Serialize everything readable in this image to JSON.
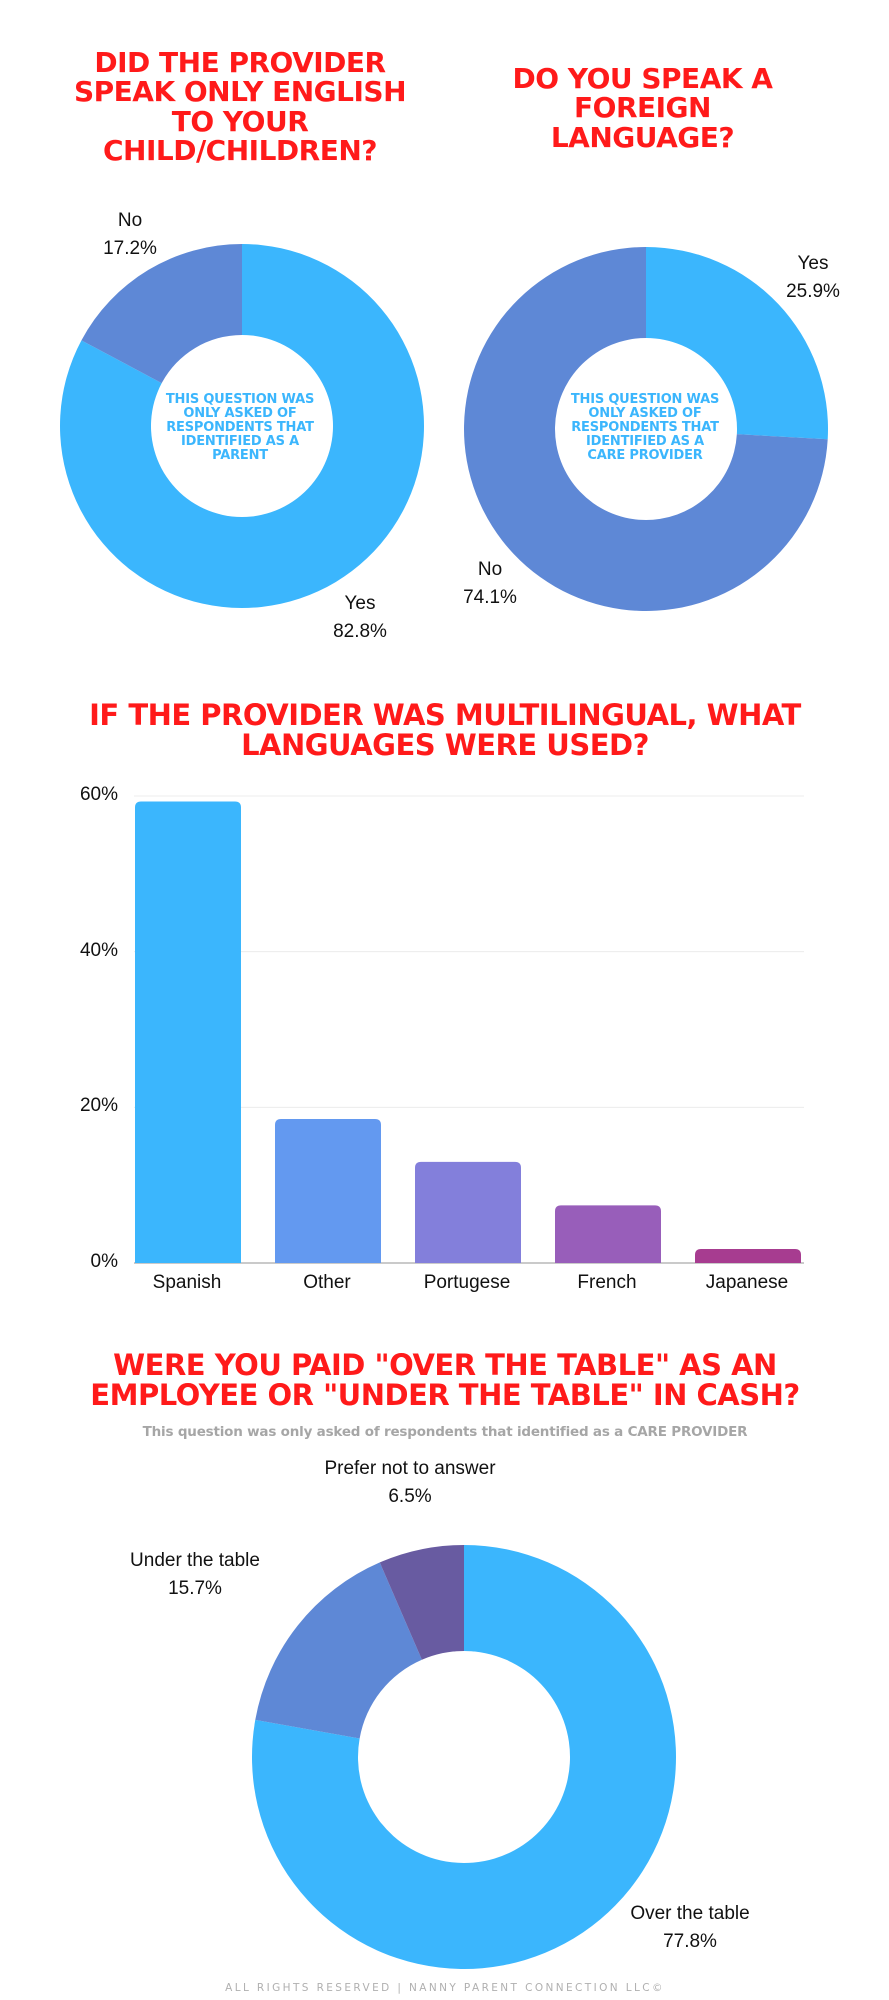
{
  "charts": {
    "q1": {
      "title": "DID THE PROVIDER SPEAK ONLY ENGLISH TO YOUR CHILD/CHILDREN?",
      "center_note": "THIS QUESTION WAS ONLY ASKED OF RESPONDENTS THAT IDENTIFIED AS A PARENT",
      "slices": [
        {
          "label": "Yes",
          "value_text": "82.8%"
        },
        {
          "label": "No",
          "value_text": "17.2%"
        }
      ]
    },
    "q2": {
      "title": "DO YOU SPEAK A FOREIGN LANGUAGE?",
      "center_note": "THIS QUESTION WAS ONLY ASKED OF RESPONDENTS THAT IDENTIFIED AS A CARE PROVIDER",
      "slices": [
        {
          "label": "Yes",
          "value_text": "25.9%"
        },
        {
          "label": "No",
          "value_text": "74.1%"
        }
      ]
    },
    "q3": {
      "title": "IF THE PROVIDER WAS MULTILINGUAL, WHAT LANGUAGES WERE USED?",
      "yticks": [
        "60%",
        "40%",
        "20%",
        "0%"
      ],
      "categories": [
        "Spanish",
        "Other",
        "Portugese",
        "French",
        "Japanese"
      ]
    },
    "q4": {
      "title": "WERE YOU PAID \"OVER THE TABLE\" AS AN EMPLOYEE OR \"UNDER THE TABLE\" IN CASH?",
      "subtitle": "This question was only asked of respondents that identified as a CARE PROVIDER",
      "slices": [
        {
          "label": "Over the table",
          "value_text": "77.8%"
        },
        {
          "label": "Under the table",
          "value_text": "15.7%"
        },
        {
          "label": "Prefer not to answer",
          "value_text": "6.5%"
        }
      ]
    }
  },
  "footer": "ALL RIGHTS RESERVED | NANNY PARENT CONNECTION LLC©",
  "colors": {
    "title_red": "#ff1a1a",
    "sky_blue": "#3bb6fd",
    "steel_blue": "#5e88d6",
    "bar_other": "#6399f0",
    "bar_portugese": "#837fdb",
    "bar_french": "#985eba",
    "bar_japanese": "#a73c90",
    "prefer_purple": "#685ba1"
  },
  "chart_data": [
    {
      "type": "pie",
      "title": "DID THE PROVIDER SPEAK ONLY ENGLISH TO YOUR CHILD/CHILDREN?",
      "categories": [
        "Yes",
        "No"
      ],
      "values": [
        82.8,
        17.2
      ],
      "annotation": "THIS QUESTION WAS ONLY ASKED OF RESPONDENTS THAT IDENTIFIED AS A PARENT",
      "donut": true
    },
    {
      "type": "pie",
      "title": "DO YOU SPEAK A FOREIGN LANGUAGE?",
      "categories": [
        "Yes",
        "No"
      ],
      "values": [
        25.9,
        74.1
      ],
      "annotation": "THIS QUESTION WAS ONLY ASKED OF RESPONDENTS THAT IDENTIFIED AS A CARE PROVIDER",
      "donut": true
    },
    {
      "type": "bar",
      "title": "IF THE PROVIDER WAS MULTILINGUAL, WHAT LANGUAGES WERE USED?",
      "categories": [
        "Spanish",
        "Other",
        "Portugese",
        "French",
        "Japanese"
      ],
      "values": [
        59.3,
        18.5,
        13.0,
        7.4,
        1.8
      ],
      "xlabel": "",
      "ylabel": "",
      "ylim": [
        0,
        60
      ],
      "yticks": [
        "0%",
        "20%",
        "40%",
        "60%"
      ],
      "grid": true
    },
    {
      "type": "pie",
      "title": "WERE YOU PAID \"OVER THE TABLE\" AS AN EMPLOYEE OR \"UNDER THE TABLE\" IN CASH?",
      "subtitle": "This question was only asked of respondents that identified as a CARE PROVIDER",
      "categories": [
        "Over the table",
        "Under the table",
        "Prefer not to answer"
      ],
      "values": [
        77.8,
        15.7,
        6.5
      ],
      "donut": true
    }
  ]
}
